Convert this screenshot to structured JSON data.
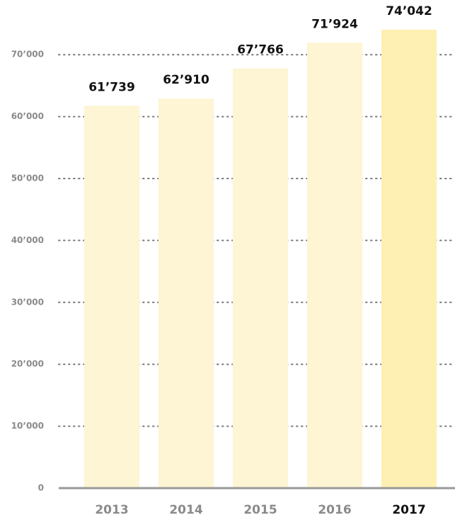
{
  "chart_data": {
    "type": "bar",
    "categories": [
      "2013",
      "2014",
      "2015",
      "2016",
      "2017"
    ],
    "values": [
      61739,
      62910,
      67766,
      71924,
      74042
    ],
    "value_labels": [
      "61’739",
      "62’910",
      "67’766",
      "71’924",
      "74’042"
    ],
    "colors": [
      "#fdf5d3",
      "#fdf5d3",
      "#fdf5d3",
      "#fdf5d3",
      "#fdf0b2"
    ],
    "highlight_index": 4,
    "ylim": [
      0,
      78000
    ],
    "yticks": [
      0,
      {
        "value": 10000,
        "label": "10’000"
      },
      {
        "value": 20000,
        "label": "20’000"
      },
      {
        "value": 30000,
        "label": "30’000"
      },
      {
        "value": 40000,
        "label": "40’000"
      },
      {
        "value": 50000,
        "label": "50’000"
      },
      {
        "value": 60000,
        "label": "60’000"
      },
      {
        "value": 70000,
        "label": "70’000"
      }
    ],
    "grid": true
  }
}
